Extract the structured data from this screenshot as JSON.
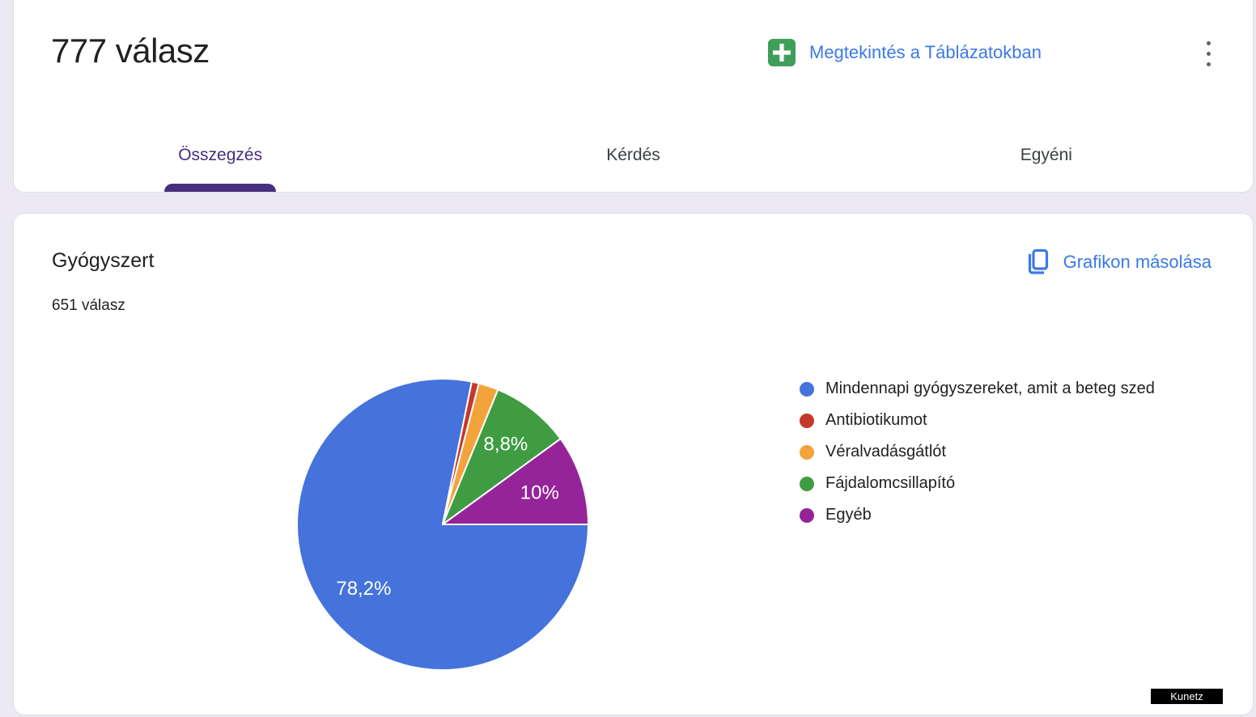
{
  "header": {
    "title": "777 válasz",
    "sheets_button": {
      "label": "Megtekintés a Táblázatokban"
    },
    "tabs": [
      {
        "label": "Összegzés",
        "active": true
      },
      {
        "label": "Kérdés",
        "active": false
      },
      {
        "label": "Egyéni",
        "active": false
      }
    ]
  },
  "question_card": {
    "title": "Gyógyszert",
    "responses_label": "651 válasz",
    "copy_chart_label": "Grafikon másolása"
  },
  "chart_data": {
    "type": "pie",
    "title": "Gyógyszert",
    "subtitle": "651 válasz",
    "start_angle_deg": 90,
    "direction": "clockwise",
    "legend_position": "right",
    "categories": [
      "Mindennapi gyógyszereket, amit a beteg szed",
      "Antibiotikumot",
      "Véralvadásgátlót",
      "Fájdalomcsillapító",
      "Egyéb"
    ],
    "values_pct": [
      78.2,
      0.8,
      2.2,
      8.8,
      10
    ],
    "slice_labels": [
      "78,2%",
      "",
      "",
      "8,8%",
      "10%"
    ],
    "colors": [
      "#4573DB",
      "#C5392B",
      "#F2A33B",
      "#3F9C42",
      "#962499"
    ]
  },
  "watermark": "Kunetz",
  "colors": {
    "page_background": "#ECE9F4",
    "card_border": "#DADCE0",
    "accent_purple": "#472D7E",
    "link_blue": "#3B78E8",
    "sheets_green": "#3F9E5A",
    "tab_inactive": "#3C4043",
    "kebab_gray": "#5F6368"
  }
}
